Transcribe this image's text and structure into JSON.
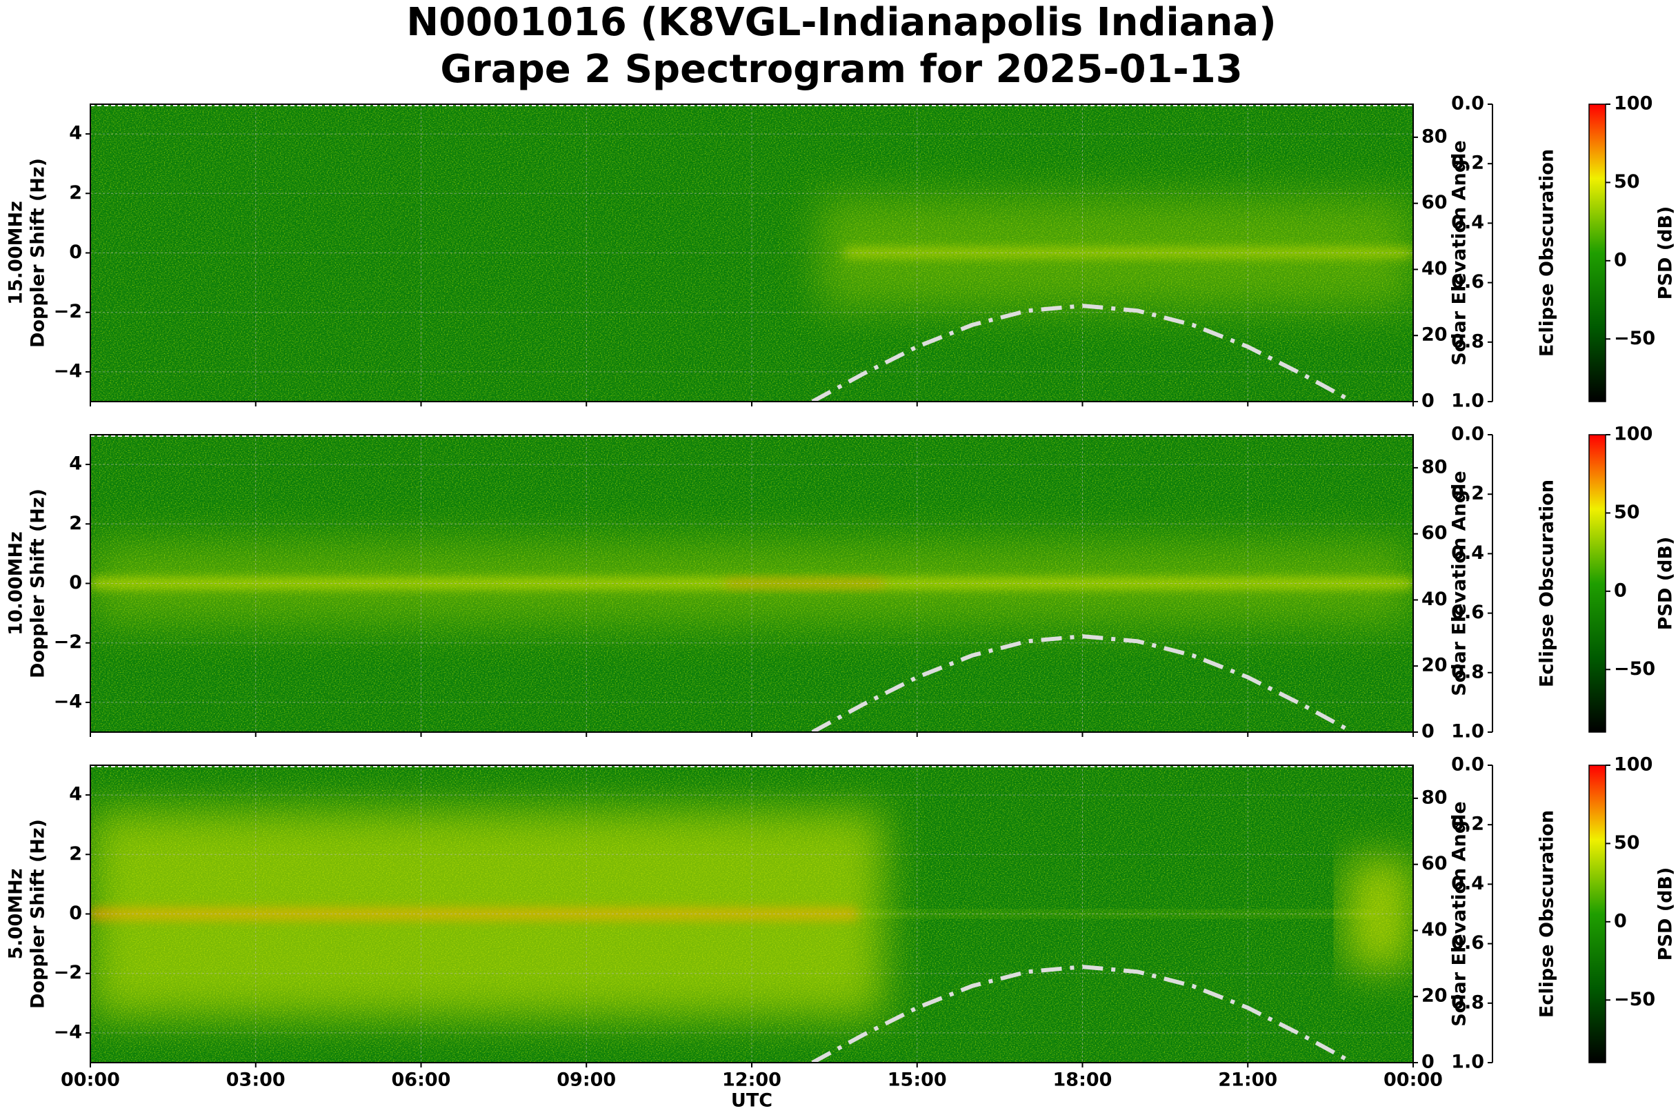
{
  "title": "N0001016 (K8VGL-Indianapolis Indiana)",
  "subtitle": "Grape 2 Spectrogram for 2025-01-13",
  "chart_data": [
    {
      "type": "spectrogram",
      "frequency_label": "15.00MHz",
      "ylabel": "Doppler Shift (Hz)",
      "ylim": [
        -5,
        5
      ],
      "yticks": [
        {
          "value": -4,
          "label": "−4"
        },
        {
          "value": -2,
          "label": "−2"
        },
        0,
        2,
        4
      ],
      "xlim": [
        0,
        24
      ],
      "xticks": [
        0,
        3,
        6,
        9,
        12,
        15,
        18,
        21,
        24
      ],
      "grid": true,
      "y2label": "Solar Elevation Angle",
      "y2lim": [
        0,
        90
      ],
      "y2ticks": [
        0,
        20,
        40,
        60,
        80
      ],
      "y3label": "Eclipse Obscuration",
      "y3lim": [
        1,
        0
      ],
      "y3ticks": [
        {
          "value": 0,
          "label": "0.0"
        },
        0.2,
        0.4,
        0.6,
        0.8,
        {
          "value": 1,
          "label": "1.0"
        }
      ],
      "clabel": "PSD (dB)",
      "clim": [
        -90,
        100
      ],
      "cticks": [
        {
          "value": -50,
          "label": "−50"
        },
        0,
        50,
        100
      ],
      "colormap": [
        "#000000",
        "#005a00",
        "#1f9e00",
        "#f0f000",
        "#ff0000"
      ],
      "series": [
        {
          "color": "#dddddd",
          "line_style": "dashdot",
          "axis": "y2",
          "x": [
            13.1,
            14,
            15,
            16,
            17,
            18,
            19,
            20,
            21,
            22,
            22.9
          ],
          "values": [
            0,
            8.2,
            16.6,
            23.2,
            27.5,
            29,
            27.5,
            23.2,
            16.6,
            8.2,
            0
          ]
        }
      ]
    },
    {
      "type": "spectrogram",
      "frequency_label": "10.00MHz",
      "ylabel": "Doppler Shift (Hz)",
      "ylim": [
        -5,
        5
      ],
      "yticks": [
        {
          "value": -4,
          "label": "−4"
        },
        {
          "value": -2,
          "label": "−2"
        },
        0,
        2,
        4
      ],
      "xlim": [
        0,
        24
      ],
      "xticks": [
        0,
        3,
        6,
        9,
        12,
        15,
        18,
        21,
        24
      ],
      "grid": true,
      "y2label": "Solar Elevation Angle",
      "y2lim": [
        0,
        90
      ],
      "y2ticks": [
        0,
        20,
        40,
        60,
        80
      ],
      "y3label": "Eclipse Obscuration",
      "y3lim": [
        1,
        0
      ],
      "y3ticks": [
        {
          "value": 0,
          "label": "0.0"
        },
        0.2,
        0.4,
        0.6,
        0.8,
        {
          "value": 1,
          "label": "1.0"
        }
      ],
      "clabel": "PSD (dB)",
      "clim": [
        -90,
        100
      ],
      "cticks": [
        {
          "value": -50,
          "label": "−50"
        },
        0,
        50,
        100
      ],
      "colormap": [
        "#000000",
        "#005a00",
        "#1f9e00",
        "#f0f000",
        "#ff0000"
      ],
      "series": [
        {
          "color": "#dddddd",
          "line_style": "dashdot",
          "axis": "y2",
          "x": [
            13.1,
            14,
            15,
            16,
            17,
            18,
            19,
            20,
            21,
            22,
            22.9
          ],
          "values": [
            0,
            8.2,
            16.6,
            23.2,
            27.5,
            29,
            27.5,
            23.2,
            16.6,
            8.2,
            0
          ]
        }
      ]
    },
    {
      "type": "spectrogram",
      "frequency_label": "5.00MHz",
      "ylabel": "Doppler Shift (Hz)",
      "ylim": [
        -5,
        5
      ],
      "yticks": [
        {
          "value": -4,
          "label": "−4"
        },
        {
          "value": -2,
          "label": "−2"
        },
        0,
        2,
        4
      ],
      "xlabel": "UTC",
      "xlim": [
        0,
        24
      ],
      "xticks": [
        {
          "value": 0,
          "label": "00:00"
        },
        {
          "value": 3,
          "label": "03:00"
        },
        {
          "value": 6,
          "label": "06:00"
        },
        {
          "value": 9,
          "label": "09:00"
        },
        {
          "value": 12,
          "label": "12:00"
        },
        {
          "value": 15,
          "label": "15:00"
        },
        {
          "value": 18,
          "label": "18:00"
        },
        {
          "value": 21,
          "label": "21:00"
        },
        {
          "value": 24,
          "label": "00:00"
        }
      ],
      "grid": true,
      "y2label": "Solar Elevation Angle",
      "y2lim": [
        0,
        90
      ],
      "y2ticks": [
        0,
        20,
        40,
        60,
        80
      ],
      "y3label": "Eclipse Obscuration",
      "y3lim": [
        1,
        0
      ],
      "y3ticks": [
        {
          "value": 0,
          "label": "0.0"
        },
        0.2,
        0.4,
        0.6,
        0.8,
        {
          "value": 1,
          "label": "1.0"
        }
      ],
      "clabel": "PSD (dB)",
      "clim": [
        -90,
        100
      ],
      "cticks": [
        {
          "value": -50,
          "label": "−50"
        },
        0,
        50,
        100
      ],
      "colormap": [
        "#000000",
        "#005a00",
        "#1f9e00",
        "#f0f000",
        "#ff0000"
      ],
      "series": [
        {
          "color": "#dddddd",
          "line_style": "dashdot",
          "axis": "y2",
          "x": [
            13.1,
            14,
            15,
            16,
            17,
            18,
            19,
            20,
            21,
            22,
            22.9
          ],
          "values": [
            0,
            8.2,
            16.6,
            23.2,
            27.5,
            29,
            27.5,
            23.2,
            16.6,
            8.2,
            0
          ]
        }
      ]
    }
  ]
}
